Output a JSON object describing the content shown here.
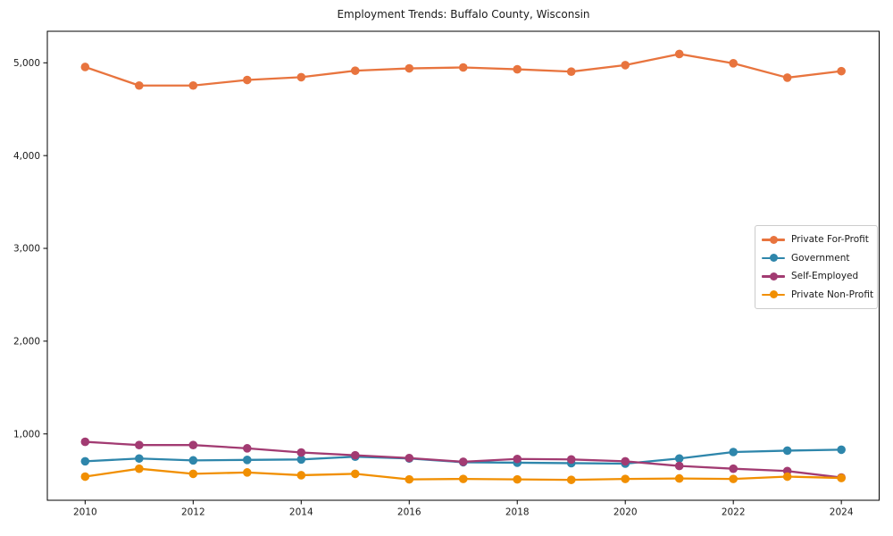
{
  "chart_data": {
    "type": "line",
    "title": "Employment Trends: Buffalo County, Wisconsin",
    "xlabel": "",
    "ylabel": "",
    "x": [
      2010,
      2011,
      2012,
      2013,
      2014,
      2015,
      2016,
      2017,
      2018,
      2019,
      2020,
      2021,
      2022,
      2023,
      2024
    ],
    "series": [
      {
        "name": "Private For-Profit",
        "color": "#E8743E",
        "values": [
          4955,
          4755,
          4755,
          4815,
          4845,
          4915,
          4940,
          4950,
          4930,
          4905,
          4975,
          5095,
          4995,
          4840,
          4910
        ]
      },
      {
        "name": "Government",
        "color": "#2E86AB",
        "values": [
          705,
          735,
          715,
          720,
          725,
          755,
          735,
          695,
          690,
          685,
          680,
          735,
          805,
          820,
          830
        ]
      },
      {
        "name": "Self-Employed",
        "color": "#A23B72",
        "values": [
          915,
          880,
          880,
          845,
          800,
          770,
          740,
          700,
          730,
          725,
          705,
          655,
          625,
          600,
          530
        ]
      },
      {
        "name": "Private Non-Profit",
        "color": "#F18F01",
        "values": [
          540,
          625,
          570,
          585,
          555,
          570,
          510,
          515,
          510,
          505,
          515,
          520,
          515,
          540,
          525
        ]
      }
    ],
    "xticks": [
      2010,
      2012,
      2014,
      2016,
      2018,
      2020,
      2022,
      2024
    ],
    "yticks": [
      1000,
      2000,
      3000,
      4000,
      5000
    ],
    "ytick_labels": [
      "1,000",
      "2,000",
      "3,000",
      "4,000",
      "5,000"
    ],
    "xlim": [
      2009.3,
      2024.7
    ],
    "ylim": [
      285,
      5340
    ],
    "grid": false,
    "legend_position": "center right",
    "marker": "o",
    "axis_color": "#000000",
    "text_color": "#1a1a1a",
    "background": "#ffffff"
  }
}
